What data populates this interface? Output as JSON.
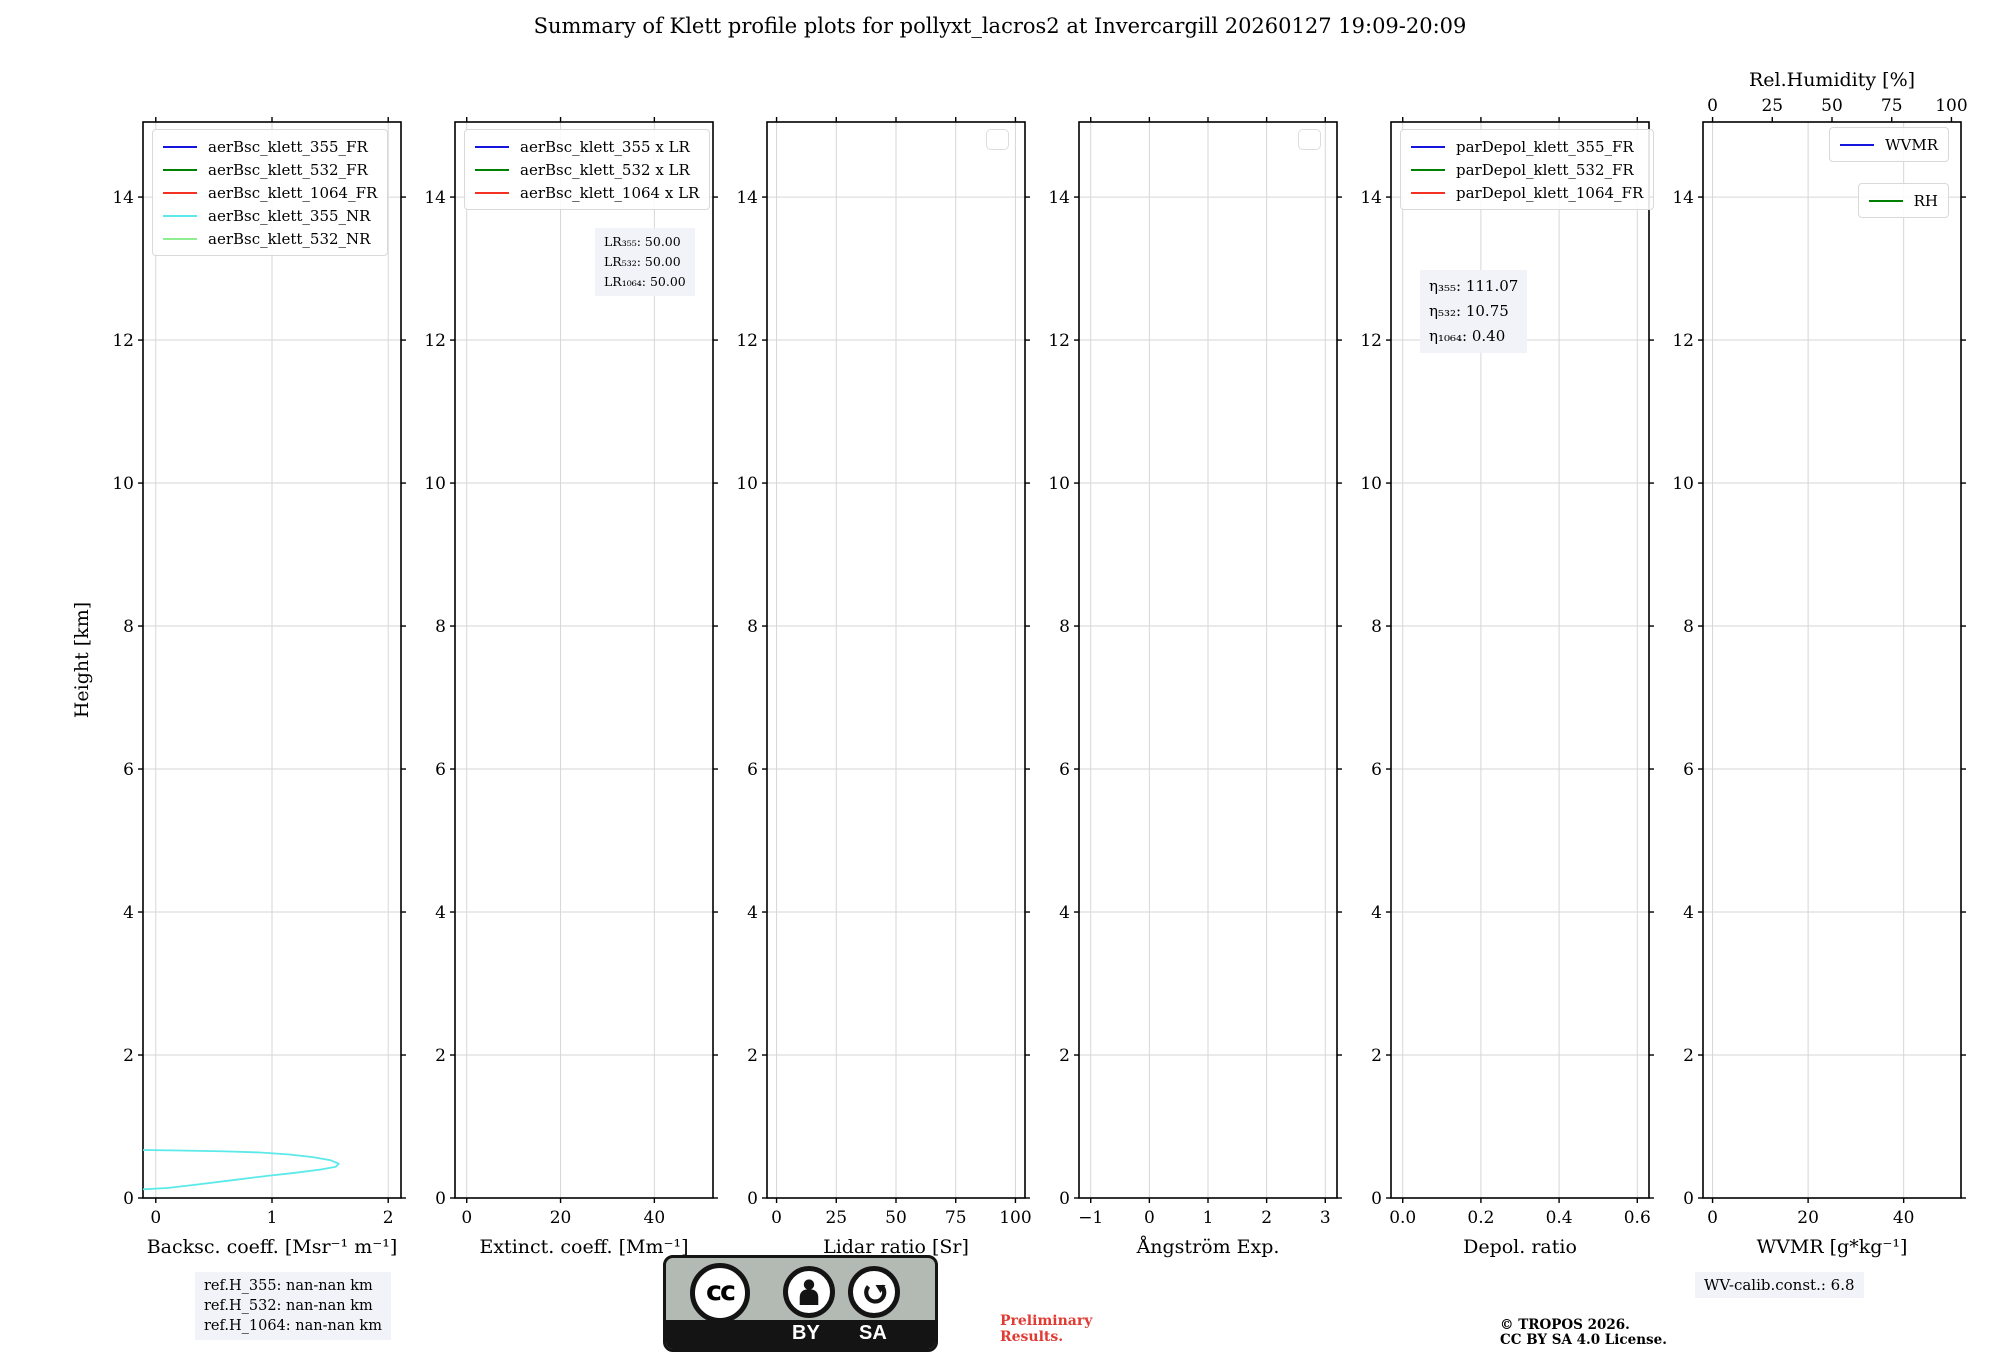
{
  "title": "Summary of Klett profile plots for pollyxt_lacros2 at Invercargill 20260127 19:09-20:09",
  "annotations": {
    "ref_heights": [
      "ref.H_355: nan-nan km",
      "ref.H_532: nan-nan km",
      "ref.H_1064: nan-nan km"
    ],
    "preliminary": [
      "Preliminary",
      "Results."
    ],
    "copyright": [
      "© TROPOS 2026.",
      "CC BY SA 4.0 License."
    ],
    "wv_calib": "WV-calib.const.: 6.8",
    "cc_badge": {
      "cc": "cc",
      "by": "BY",
      "sa": "SA"
    }
  },
  "colors": {
    "blue": "#1515dd",
    "green": "#008000",
    "red": "#f53126",
    "cyan": "#5ce9e9",
    "light_green": "#90ee90",
    "grid": "#d6d6d6",
    "annotation_bg": "#f2f3f8",
    "preliminary_red": "#e03a33"
  },
  "chart_data": {
    "type": "line",
    "ylabel": "Height [km]",
    "ylim": [
      0,
      15.05
    ],
    "yticks": [
      0,
      2,
      4,
      6,
      8,
      10,
      12,
      14
    ],
    "grid": true,
    "panels": [
      {
        "id": "backscatter",
        "xlabel": "Backsc. coeff. [Msr⁻¹ m⁻¹]",
        "xlim": [
          -0.11,
          2.11
        ],
        "xticks": [
          0,
          1,
          2
        ],
        "xtick_labels": [
          "0",
          "1",
          "2"
        ],
        "legend": [
          {
            "label": "aerBsc_klett_355_FR",
            "color": "#1515dd"
          },
          {
            "label": "aerBsc_klett_532_FR",
            "color": "#008000"
          },
          {
            "label": "aerBsc_klett_1064_FR",
            "color": "#f53126"
          },
          {
            "label": "aerBsc_klett_355_NR",
            "color": "#5ce9e9"
          },
          {
            "label": "aerBsc_klett_532_NR",
            "color": "#90ee90"
          }
        ],
        "series": [
          {
            "name": "aerBsc_klett_355_NR",
            "color": "#5ce9e9",
            "points": [
              [
                -0.11,
                0.672
              ],
              [
                0.2,
                0.664
              ],
              [
                0.6,
                0.652
              ],
              [
                0.9,
                0.636
              ],
              [
                1.15,
                0.608
              ],
              [
                1.35,
                0.572
              ],
              [
                1.5,
                0.53
              ],
              [
                1.575,
                0.48
              ],
              [
                1.55,
                0.438
              ],
              [
                1.42,
                0.398
              ],
              [
                1.2,
                0.352
              ],
              [
                0.95,
                0.308
              ],
              [
                0.65,
                0.248
              ],
              [
                0.35,
                0.188
              ],
              [
                0.1,
                0.14
              ],
              [
                -0.11,
                0.122
              ]
            ]
          }
        ]
      },
      {
        "id": "extinction",
        "xlabel": "Extinct. coeff. [Mm⁻¹]",
        "xlim": [
          -2.5,
          52.5
        ],
        "xticks": [
          0,
          20,
          40
        ],
        "xtick_labels": [
          "0",
          "20",
          "40"
        ],
        "legend": [
          {
            "label": "aerBsc_klett_355 x LR",
            "color": "#1515dd"
          },
          {
            "label": "aerBsc_klett_532 x LR",
            "color": "#008000"
          },
          {
            "label": "aerBsc_klett_1064 x LR",
            "color": "#f53126"
          }
        ],
        "textbox": {
          "lines": [
            "LR₃₅₅: 50.00",
            "LR₅₃₂: 50.00",
            "LR₁₀₆₄: 50.00"
          ]
        },
        "series": []
      },
      {
        "id": "lidar-ratio",
        "xlabel": "Lidar ratio [Sr]",
        "xlim": [
          -4,
          104
        ],
        "xticks": [
          0,
          25,
          50,
          75,
          100
        ],
        "xtick_labels": [
          "0",
          "25",
          "50",
          "75",
          "100"
        ],
        "empty_legend": true,
        "series": []
      },
      {
        "id": "angstrom",
        "xlabel": "Ångström Exp.",
        "xlim": [
          -1.2,
          3.2
        ],
        "xticks": [
          -1,
          0,
          1,
          2,
          3
        ],
        "xtick_labels": [
          "−1",
          "0",
          "1",
          "2",
          "3"
        ],
        "empty_legend": true,
        "series": []
      },
      {
        "id": "depol-ratio",
        "xlabel": "Depol. ratio",
        "xlim": [
          -0.03,
          0.63
        ],
        "xticks": [
          0,
          0.2,
          0.4,
          0.6
        ],
        "xtick_labels": [
          "0.0",
          "0.2",
          "0.4",
          "0.6"
        ],
        "legend": [
          {
            "label": "parDepol_klett_355_FR",
            "color": "#1515dd"
          },
          {
            "label": "parDepol_klett_532_FR",
            "color": "#008000"
          },
          {
            "label": "parDepol_klett_1064_FR",
            "color": "#f53126"
          }
        ],
        "textbox": {
          "lines": [
            "η₃₅₅: 111.07",
            "η₅₃₂: 10.75",
            "η₁₀₆₄: 0.40"
          ]
        },
        "series": []
      },
      {
        "id": "wvmr",
        "xlabel": "WVMR [g*kg⁻¹]",
        "xlim": [
          -2,
          52
        ],
        "xticks": [
          0,
          20,
          40
        ],
        "xtick_labels": [
          "0",
          "20",
          "40"
        ],
        "top_axis": {
          "label": "Rel.Humidity [%]",
          "xlim": [
            -4,
            104
          ],
          "xticks": [
            0,
            25,
            50,
            75,
            100
          ],
          "xtick_labels": [
            "0",
            "25",
            "50",
            "75",
            "100"
          ]
        },
        "legends_right": [
          {
            "label": "WVMR",
            "color": "#1515dd"
          },
          {
            "label": "RH",
            "color": "#008000"
          }
        ],
        "series": []
      }
    ]
  }
}
